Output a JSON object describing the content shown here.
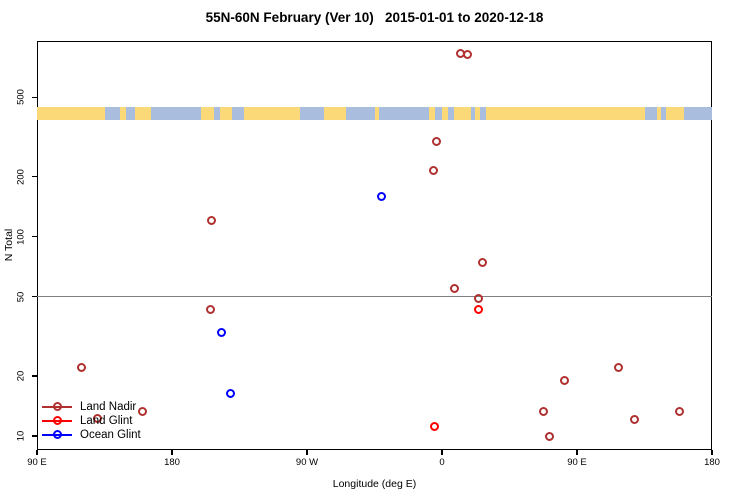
{
  "chart_data": {
    "type": "scatter",
    "title": "55N-60N February (Ver 10)   2015-01-01 to 2020-12-18",
    "xlabel": "Longitude (deg E)",
    "ylabel": "N Total",
    "x_axis": {
      "range_deg": [
        90,
        540
      ],
      "ticks": [
        {
          "deg": 90,
          "label": "90 E"
        },
        {
          "deg": 180,
          "label": "180"
        },
        {
          "deg": 270,
          "label": "90 W"
        },
        {
          "deg": 360,
          "label": "0"
        },
        {
          "deg": 450,
          "label": "90 E"
        },
        {
          "deg": 540,
          "label": "180"
        }
      ]
    },
    "y_axis": {
      "scale": "log",
      "range": [
        8.5,
        960
      ],
      "ticks": [
        10,
        20,
        50,
        100,
        200,
        500
      ]
    },
    "threshold_line": {
      "value": 50,
      "color": "#808080"
    },
    "series": [
      {
        "name": "Land Nadir",
        "color": "#B03030",
        "points": [
          {
            "deg": 372,
            "n": 830
          },
          {
            "deg": 377,
            "n": 820
          },
          {
            "deg": 356,
            "n": 300
          },
          {
            "deg": 354,
            "n": 215
          },
          {
            "deg": 206,
            "n": 120
          },
          {
            "deg": 387,
            "n": 74
          },
          {
            "deg": 368,
            "n": 55
          },
          {
            "deg": 384,
            "n": 49
          },
          {
            "deg": 205.5,
            "n": 43
          },
          {
            "deg": 119.5,
            "n": 22
          },
          {
            "deg": 477.5,
            "n": 22
          },
          {
            "deg": 441.5,
            "n": 19
          },
          {
            "deg": 160,
            "n": 13.2
          },
          {
            "deg": 427.5,
            "n": 13.2
          },
          {
            "deg": 518,
            "n": 13.2
          },
          {
            "deg": 130,
            "n": 12.2
          },
          {
            "deg": 488,
            "n": 12.1
          },
          {
            "deg": 431.5,
            "n": 10
          }
        ]
      },
      {
        "name": "Land Glint",
        "color": "#FF0000",
        "points": [
          {
            "deg": 384,
            "n": 43
          },
          {
            "deg": 355,
            "n": 11.1
          }
        ]
      },
      {
        "name": "Ocean Glint",
        "color": "#0000FF",
        "points": [
          {
            "deg": 319.5,
            "n": 160
          },
          {
            "deg": 213,
            "n": 33
          },
          {
            "deg": 219,
            "n": 16.3
          }
        ]
      }
    ],
    "map_strip": {
      "ocean_color": "#A9BEDE",
      "land_color": "#FBD878",
      "land_segments_deg": [
        [
          90,
          135
        ],
        [
          145,
          149
        ],
        [
          155,
          166
        ],
        [
          199,
          208
        ],
        [
          212,
          220
        ],
        [
          228,
          265
        ],
        [
          281,
          296
        ],
        [
          315,
          318
        ],
        [
          351,
          355
        ],
        [
          360,
          364
        ],
        [
          368,
          379
        ],
        [
          382,
          385
        ],
        [
          389,
          495
        ],
        [
          503,
          506
        ],
        [
          509,
          521
        ]
      ]
    },
    "legend": {
      "labels": [
        "Land Nadir",
        "Land Glint",
        "Ocean Glint"
      ]
    }
  }
}
